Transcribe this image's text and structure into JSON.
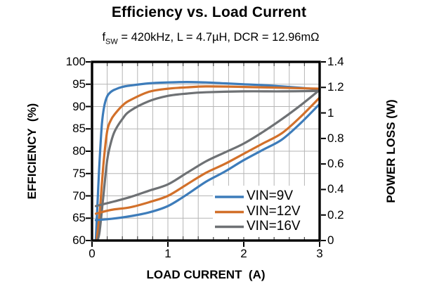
{
  "title": "Efficiency vs. Load Current",
  "subtitle": {
    "f": "f",
    "sub": "SW",
    "rest": " = 420kHz, L = 4.7µH, DCR = 12.96mΩ"
  },
  "colors": {
    "vin9": "#3d7cba",
    "vin12": "#d2702a",
    "vin16": "#6e7174",
    "grid": "#b5b5b5",
    "frame": "#000000",
    "text": "#000000",
    "legend_bg": "#ffffff"
  },
  "chart_data": {
    "type": "line",
    "title": "Efficiency vs. Load Current",
    "subtitle": "fSW = 420kHz, L = 4.7µH, DCR = 12.96mΩ",
    "grid": "on",
    "legend_position": "inside-bottom-right",
    "x_axis": {
      "label": "LOAD CURRENT  (A)",
      "range": [
        0,
        3
      ],
      "ticks": [
        0,
        1,
        2,
        3
      ],
      "minor_grid_step": 0.2
    },
    "y_left": {
      "label": "EFFICIENCY  (%)",
      "range": [
        60,
        100
      ],
      "ticks": [
        100,
        95,
        90,
        85,
        80,
        75,
        70,
        65,
        60
      ],
      "grid_step": 5
    },
    "y_right": {
      "label": "POWER LOSS (W)",
      "range": [
        0,
        1.4
      ],
      "ticks": [
        "1.4",
        "1.2",
        "1",
        "0.8",
        "0.6",
        "0.4",
        "0.2",
        "0"
      ]
    },
    "legend": [
      {
        "label": "VIN=9V",
        "color": "#3d7cba"
      },
      {
        "label": "VIN=12V",
        "color": "#d2702a"
      },
      {
        "label": "VIN=16V",
        "color": "#6e7174"
      }
    ],
    "series": [
      {
        "name": "vin9v-efficiency",
        "vin": "9V",
        "metric": "efficiency",
        "axis": "left",
        "color": "#3d7cba",
        "x": [
          0.05,
          0.08,
          0.1,
          0.13,
          0.16,
          0.2,
          0.25,
          0.3,
          0.4,
          0.5,
          0.75,
          1.0,
          1.25,
          1.5,
          1.75,
          2.0,
          2.25,
          2.5,
          2.75,
          3.0
        ],
        "y": [
          60,
          71,
          78,
          86,
          90,
          92.3,
          93.3,
          93.8,
          94.4,
          94.7,
          95.2,
          95.4,
          95.5,
          95.4,
          95.2,
          95.0,
          94.8,
          94.5,
          94.2,
          93.8
        ]
      },
      {
        "name": "vin12v-efficiency",
        "vin": "12V",
        "metric": "efficiency",
        "axis": "left",
        "color": "#d2702a",
        "x": [
          0.06,
          0.1,
          0.15,
          0.2,
          0.25,
          0.3,
          0.4,
          0.5,
          0.75,
          1.0,
          1.25,
          1.5,
          2.0,
          2.5,
          3.0
        ],
        "y": [
          60,
          66,
          77,
          84.5,
          87,
          88.3,
          90.2,
          91.4,
          93.3,
          94.0,
          94.3,
          94.5,
          94.4,
          94.2,
          94.0
        ]
      },
      {
        "name": "vin16v-efficiency",
        "vin": "16V",
        "metric": "efficiency",
        "axis": "left",
        "color": "#6e7174",
        "x": [
          0.07,
          0.1,
          0.15,
          0.2,
          0.25,
          0.3,
          0.4,
          0.5,
          0.75,
          1.0,
          1.25,
          1.5,
          2.0,
          2.5,
          3.0
        ],
        "y": [
          60,
          62,
          70,
          78,
          82,
          84.5,
          87.2,
          89.0,
          91.2,
          92.4,
          92.9,
          93.2,
          93.4,
          93.4,
          93.5
        ]
      },
      {
        "name": "vin9v-power-loss",
        "vin": "9V",
        "metric": "power_loss",
        "axis": "right",
        "color": "#3d7cba",
        "x": [
          0.05,
          0.25,
          0.5,
          0.75,
          1.0,
          1.25,
          1.5,
          1.75,
          2.0,
          2.25,
          2.5,
          2.75,
          3.0
        ],
        "y": [
          0.16,
          0.17,
          0.19,
          0.22,
          0.27,
          0.36,
          0.46,
          0.54,
          0.63,
          0.71,
          0.79,
          0.92,
          1.07
        ]
      },
      {
        "name": "vin12v-power-loss",
        "vin": "12V",
        "metric": "power_loss",
        "axis": "right",
        "color": "#d2702a",
        "x": [
          0.05,
          0.25,
          0.5,
          0.75,
          1.0,
          1.25,
          1.5,
          1.75,
          2.0,
          2.25,
          2.5,
          2.75,
          3.0
        ],
        "y": [
          0.21,
          0.24,
          0.26,
          0.3,
          0.35,
          0.44,
          0.53,
          0.6,
          0.68,
          0.76,
          0.84,
          0.97,
          1.12
        ]
      },
      {
        "name": "vin16v-power-loss",
        "vin": "16V",
        "metric": "power_loss",
        "axis": "right",
        "color": "#6e7174",
        "x": [
          0.05,
          0.25,
          0.5,
          0.75,
          1.0,
          1.25,
          1.5,
          1.75,
          2.0,
          2.25,
          2.5,
          2.75,
          3.0
        ],
        "y": [
          0.27,
          0.3,
          0.34,
          0.39,
          0.44,
          0.53,
          0.62,
          0.69,
          0.76,
          0.85,
          0.95,
          1.06,
          1.18
        ]
      }
    ]
  }
}
